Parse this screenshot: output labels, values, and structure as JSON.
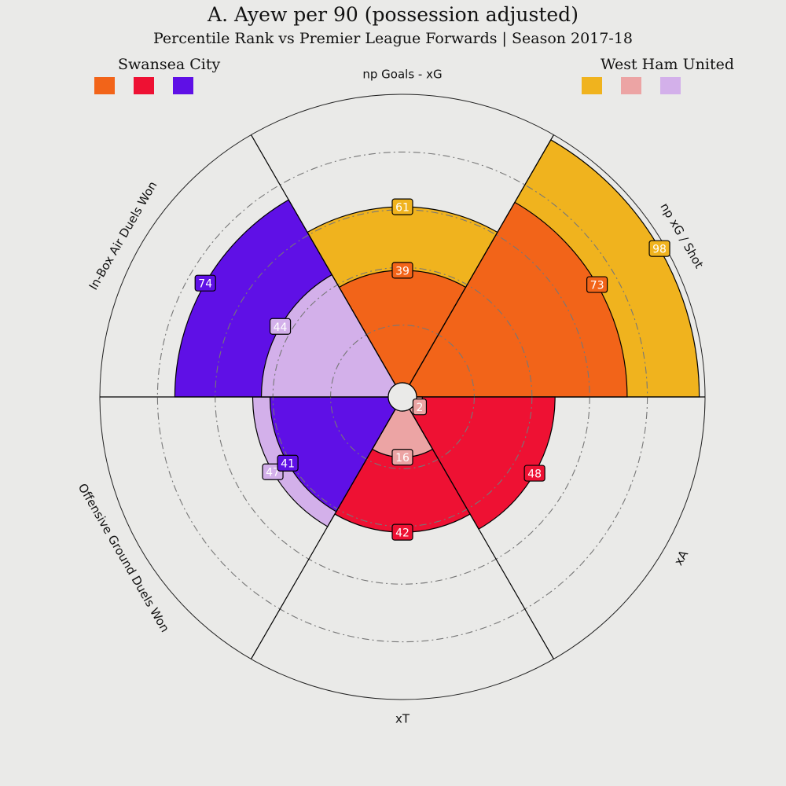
{
  "title": "A. Ayew per 90 (possession adjusted)",
  "subtitle": "Percentile Rank vs Premier League Forwards | Season 2017-18",
  "teams": [
    {
      "name": "Swansea City",
      "colors": [
        "#F26419",
        "#EE1133",
        "#5F10E6"
      ]
    },
    {
      "name": "West Ham United",
      "colors": [
        "#F0B31E",
        "#ECA4A4",
        "#D3B0EA"
      ]
    }
  ],
  "chart_data": {
    "type": "polar_bar",
    "scale": "percentile",
    "rlim": [
      0,
      100
    ],
    "grid_rings": [
      20,
      40,
      60,
      80
    ],
    "segments": [
      {
        "label": "np Goals - xG",
        "bars": [
          {
            "team": "West Ham United",
            "value": 61,
            "color": "#F0B31E"
          },
          {
            "team": "Swansea City",
            "value": 39,
            "color": "#F26419"
          }
        ]
      },
      {
        "label": "np xG / Shot",
        "bars": [
          {
            "team": "West Ham United",
            "value": 98,
            "color": "#F0B31E"
          },
          {
            "team": "Swansea City",
            "value": 73,
            "color": "#F26419"
          }
        ]
      },
      {
        "label": "xA",
        "bars": [
          {
            "team": "Swansea City",
            "value": 48,
            "color": "#EE1133"
          },
          {
            "team": "West Ham United",
            "value": 2,
            "color": "#ECA4A4"
          }
        ]
      },
      {
        "label": "xT",
        "bars": [
          {
            "team": "Swansea City",
            "value": 42,
            "color": "#EE1133"
          },
          {
            "team": "West Ham United",
            "value": 16,
            "color": "#ECA4A4"
          }
        ]
      },
      {
        "label": "Offensive Ground Duels Won",
        "bars": [
          {
            "team": "West Ham United",
            "value": 47,
            "color": "#D3B0EA"
          },
          {
            "team": "Swansea City",
            "value": 41,
            "color": "#5F10E6"
          }
        ]
      },
      {
        "label": "In-Box Air Duels Won",
        "bars": [
          {
            "team": "Swansea City",
            "value": 74,
            "color": "#5F10E6"
          },
          {
            "team": "West Ham United",
            "value": 44,
            "color": "#D3B0EA"
          }
        ]
      }
    ]
  }
}
